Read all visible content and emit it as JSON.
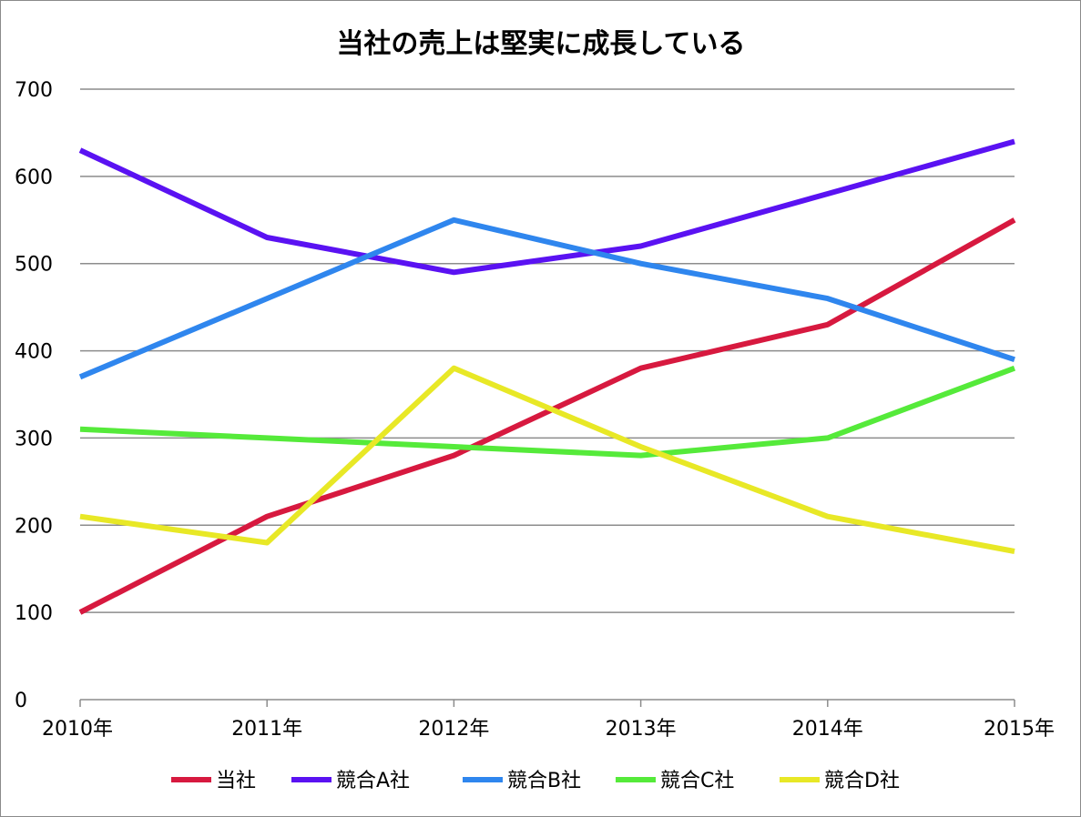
{
  "chart_data": {
    "type": "line",
    "title": "当社の売上は堅実に成長している",
    "xlabel": "",
    "ylabel": "",
    "categories": [
      "2010年",
      "2011年",
      "2012年",
      "2013年",
      "2014年",
      "2015年"
    ],
    "ylim": [
      0,
      700
    ],
    "yticks": [
      0,
      100,
      200,
      300,
      400,
      500,
      600,
      700
    ],
    "grid": true,
    "legend_position": "bottom",
    "series": [
      {
        "name": "当社",
        "color": "#d7193f",
        "values": [
          100,
          210,
          280,
          380,
          430,
          550
        ]
      },
      {
        "name": "競合A社",
        "color": "#5a12f2",
        "values": [
          630,
          530,
          490,
          520,
          580,
          640
        ]
      },
      {
        "name": "競合B社",
        "color": "#2f86ee",
        "values": [
          370,
          460,
          550,
          500,
          460,
          390
        ]
      },
      {
        "name": "競合C社",
        "color": "#55ea3a",
        "values": [
          310,
          300,
          290,
          280,
          300,
          380
        ]
      },
      {
        "name": "競合D社",
        "color": "#e8e826",
        "values": [
          210,
          180,
          380,
          290,
          210,
          170
        ]
      }
    ]
  }
}
